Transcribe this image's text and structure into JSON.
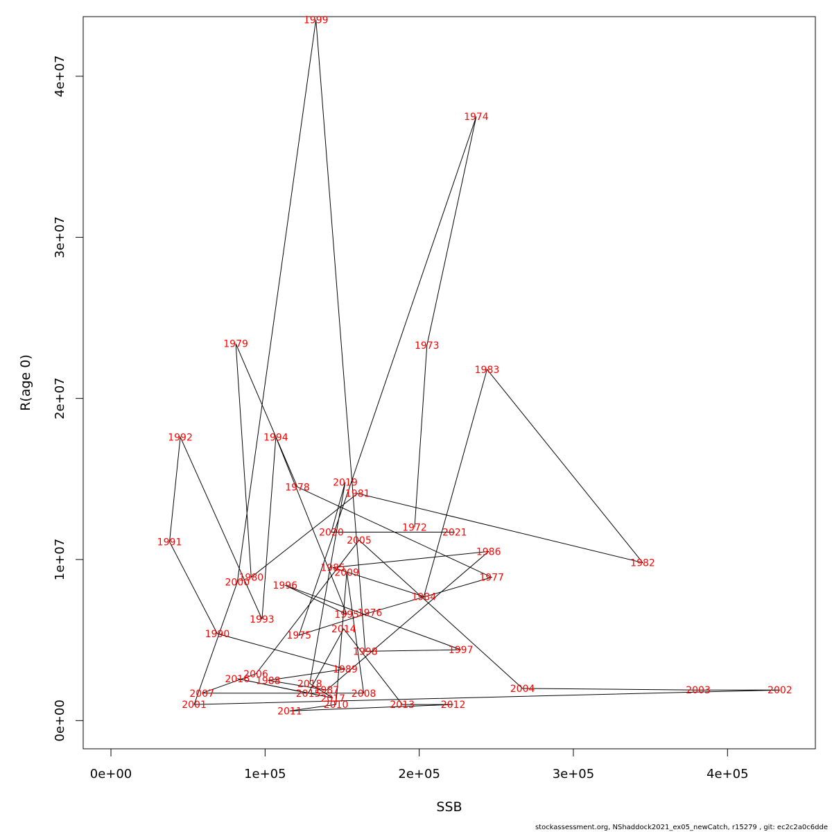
{
  "chart_data": {
    "type": "line",
    "xlabel": "SSB",
    "ylabel": "R(age 0)",
    "xlim": [
      -18000,
      457000
    ],
    "ylim": [
      -1750000,
      43700000
    ],
    "x_ticks": [
      0,
      100000,
      200000,
      300000,
      400000
    ],
    "x_tick_labels": [
      "0e+00",
      "1e+05",
      "2e+05",
      "3e+05",
      "4e+05"
    ],
    "y_ticks": [
      0,
      10000000,
      20000000,
      30000000,
      40000000
    ],
    "y_tick_labels": [
      "0e+00",
      "1e+07",
      "2e+07",
      "3e+07",
      "4e+07"
    ],
    "line_color": "#000000",
    "label_color": "#ff0000",
    "points": [
      {
        "year": "1972",
        "ssb": 197000,
        "r": 12000000
      },
      {
        "year": "1973",
        "ssb": 205000,
        "r": 23300000
      },
      {
        "year": "1974",
        "ssb": 237000,
        "r": 37500000
      },
      {
        "year": "1975",
        "ssb": 122000,
        "r": 5300000
      },
      {
        "year": "1976",
        "ssb": 168000,
        "r": 6700000
      },
      {
        "year": "1977",
        "ssb": 247000,
        "r": 8900000
      },
      {
        "year": "1978",
        "ssb": 121000,
        "r": 14500000
      },
      {
        "year": "1979",
        "ssb": 81000,
        "r": 23400000
      },
      {
        "year": "1980",
        "ssb": 91000,
        "r": 8900000
      },
      {
        "year": "1981",
        "ssb": 160000,
        "r": 14100000
      },
      {
        "year": "1982",
        "ssb": 345000,
        "r": 9800000
      },
      {
        "year": "1983",
        "ssb": 244000,
        "r": 21800000
      },
      {
        "year": "1984",
        "ssb": 203000,
        "r": 7700000
      },
      {
        "year": "1985",
        "ssb": 144000,
        "r": 9500000
      },
      {
        "year": "1986",
        "ssb": 245000,
        "r": 10500000
      },
      {
        "year": "1987",
        "ssb": 140000,
        "r": 1900000
      },
      {
        "year": "1988",
        "ssb": 102000,
        "r": 2500000
      },
      {
        "year": "1989",
        "ssb": 152000,
        "r": 3200000
      },
      {
        "year": "1990",
        "ssb": 69000,
        "r": 5400000
      },
      {
        "year": "1991",
        "ssb": 38000,
        "r": 11100000
      },
      {
        "year": "1992",
        "ssb": 45000,
        "r": 17600000
      },
      {
        "year": "1993",
        "ssb": 98000,
        "r": 6300000
      },
      {
        "year": "1994",
        "ssb": 107000,
        "r": 17600000
      },
      {
        "year": "1995",
        "ssb": 153000,
        "r": 6600000
      },
      {
        "year": "1996",
        "ssb": 113000,
        "r": 8400000
      },
      {
        "year": "1997",
        "ssb": 227000,
        "r": 4400000
      },
      {
        "year": "1998",
        "ssb": 165000,
        "r": 4300000
      },
      {
        "year": "1999",
        "ssb": 133000,
        "r": 43500000
      },
      {
        "year": "2000",
        "ssb": 82000,
        "r": 8600000
      },
      {
        "year": "2001",
        "ssb": 54000,
        "r": 1000000
      },
      {
        "year": "2002",
        "ssb": 434000,
        "r": 1900000
      },
      {
        "year": "2003",
        "ssb": 381000,
        "r": 1900000
      },
      {
        "year": "2004",
        "ssb": 267000,
        "r": 2000000
      },
      {
        "year": "2005",
        "ssb": 161000,
        "r": 11200000
      },
      {
        "year": "2006",
        "ssb": 94000,
        "r": 2900000
      },
      {
        "year": "2007",
        "ssb": 59000,
        "r": 1700000
      },
      {
        "year": "2008",
        "ssb": 164000,
        "r": 1700000
      },
      {
        "year": "2009",
        "ssb": 153000,
        "r": 9200000
      },
      {
        "year": "2010",
        "ssb": 146000,
        "r": 1000000
      },
      {
        "year": "2011",
        "ssb": 116000,
        "r": 600000
      },
      {
        "year": "2012",
        "ssb": 222000,
        "r": 1000000
      },
      {
        "year": "2013",
        "ssb": 189000,
        "r": 1000000
      },
      {
        "year": "2014",
        "ssb": 151000,
        "r": 5700000
      },
      {
        "year": "2015",
        "ssb": 128000,
        "r": 1700000
      },
      {
        "year": "2016",
        "ssb": 82000,
        "r": 2600000
      },
      {
        "year": "2017",
        "ssb": 144000,
        "r": 1400000
      },
      {
        "year": "2018",
        "ssb": 129000,
        "r": 2300000
      },
      {
        "year": "2019",
        "ssb": 152000,
        "r": 14800000
      },
      {
        "year": "2020",
        "ssb": 143000,
        "r": 11700000
      },
      {
        "year": "2021",
        "ssb": 223000,
        "r": 11700000
      }
    ]
  },
  "footer": {
    "text": "stockassessment.org, NShaddock2021_ex05_newCatch, r15279 , git: ec2c2a0c6dde"
  }
}
